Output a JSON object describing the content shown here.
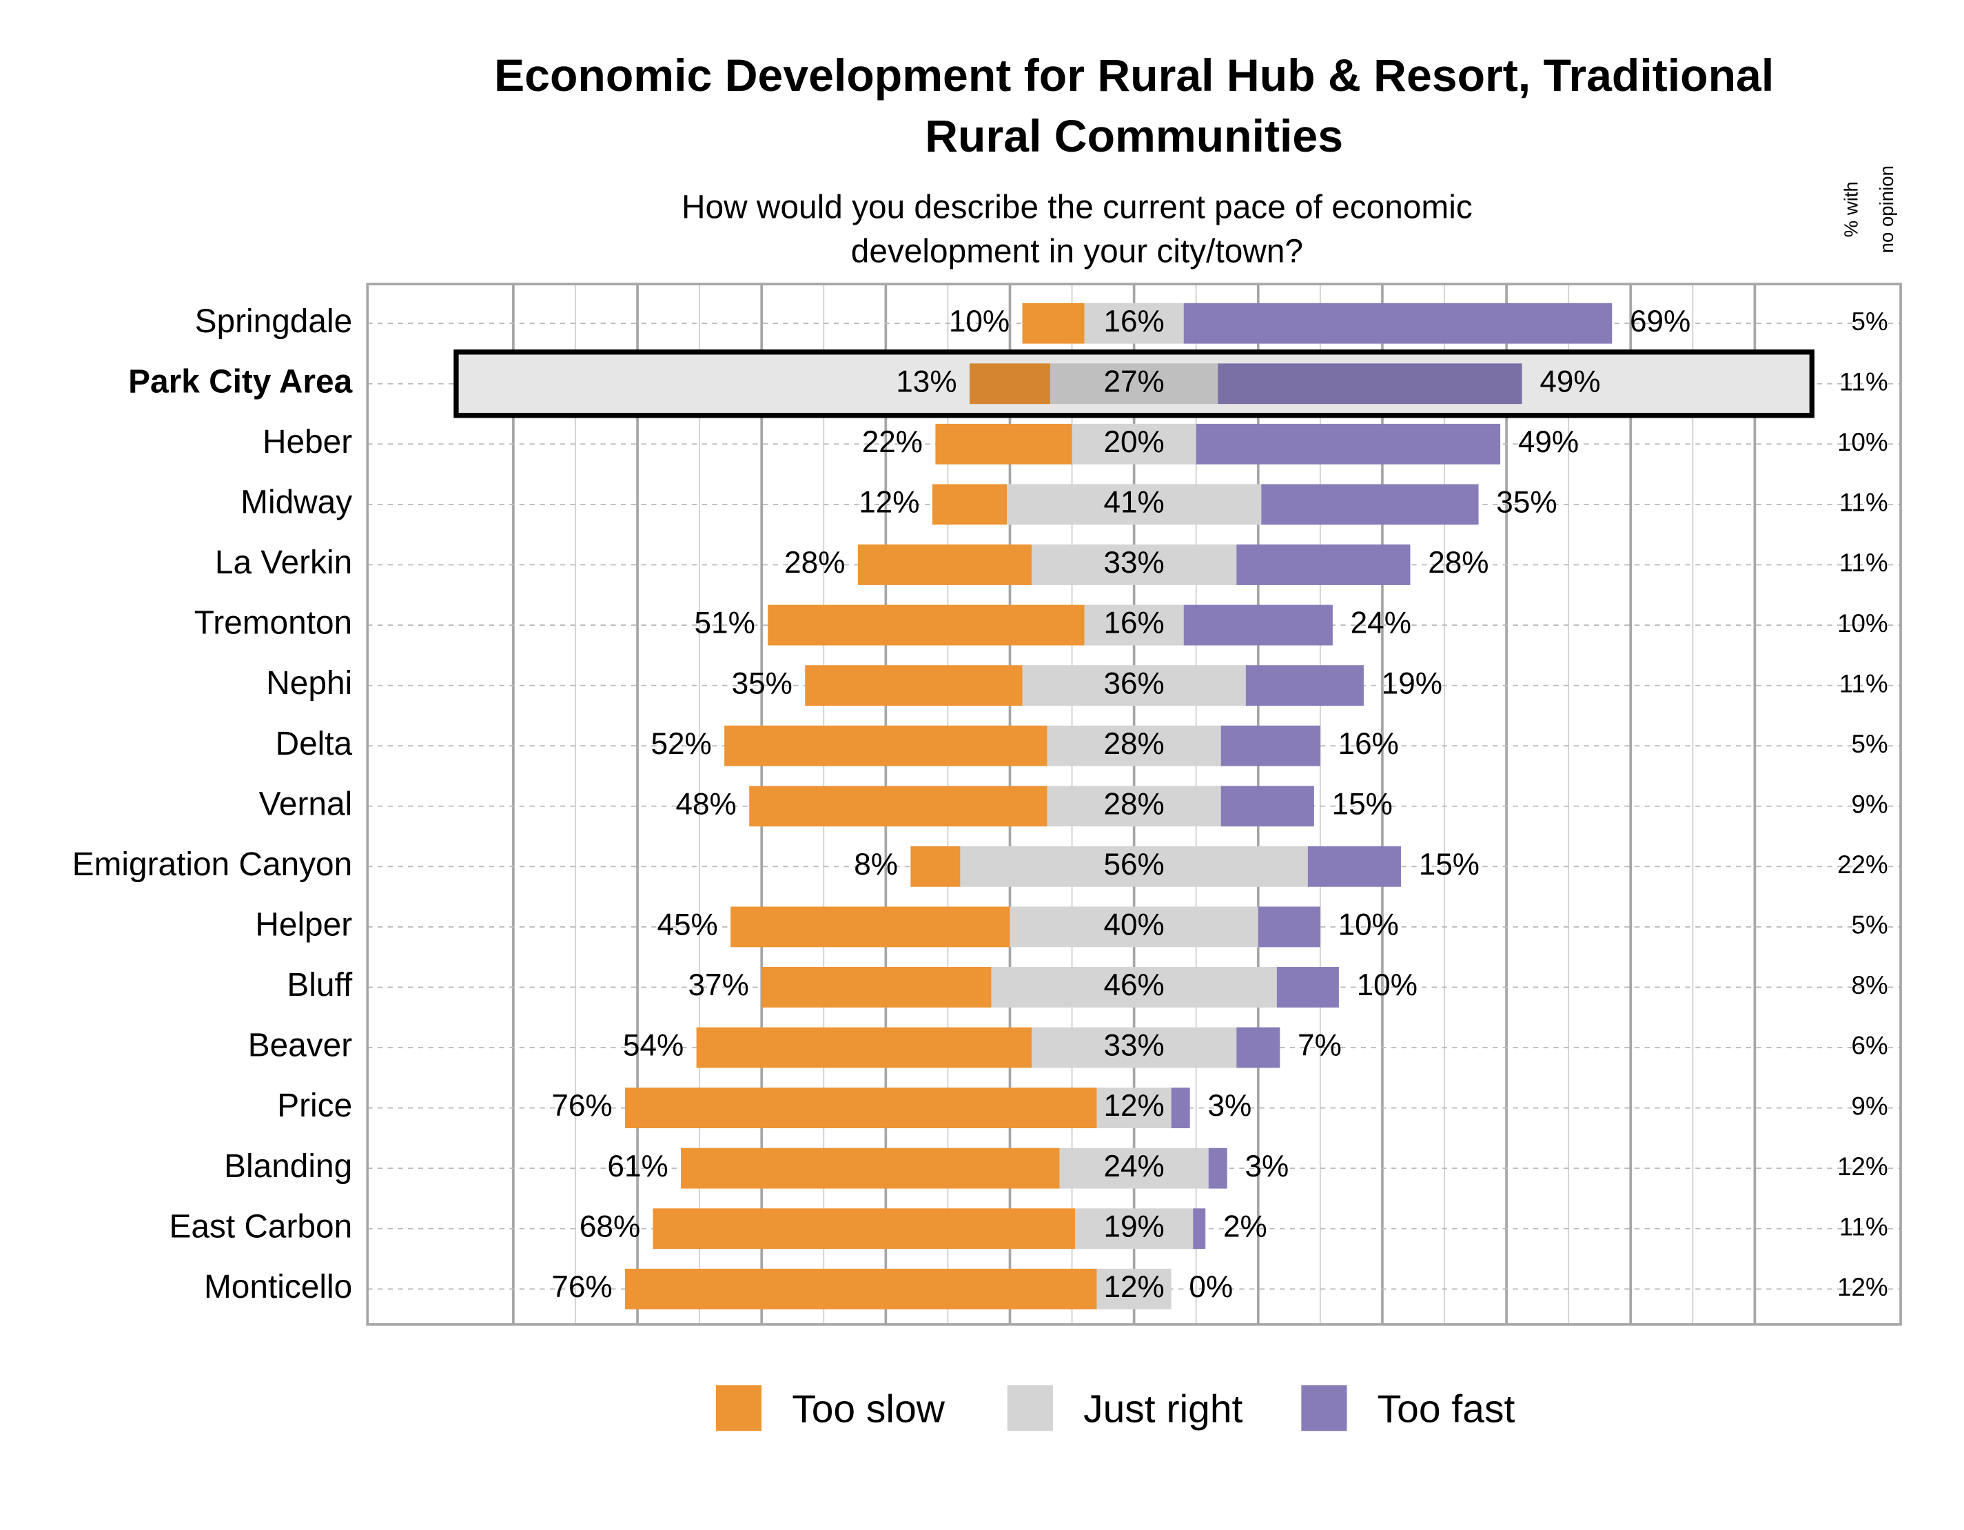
{
  "chart_data": {
    "type": "diverging_bar",
    "title": [
      "Economic Development for Rural Hub & Resort, Traditional",
      "Rural Communities"
    ],
    "subtitle": [
      "How would you describe the current pace of economic",
      "development in your city/town?"
    ],
    "categories": [
      "Springdale",
      "Park City Area",
      "Heber",
      "Midway",
      "La Verkin",
      "Tremonton",
      "Nephi",
      "Delta",
      "Vernal",
      "Emigration Canyon",
      "Helper",
      "Bluff",
      "Beaver",
      "Price",
      "Blanding",
      "East Carbon",
      "Monticello"
    ],
    "highlight": 1,
    "series": [
      {
        "name": "Too slow",
        "color": "#ED9434",
        "values": [
          10,
          13,
          22,
          12,
          28,
          51,
          35,
          52,
          48,
          8,
          45,
          37,
          54,
          76,
          61,
          68,
          76
        ],
        "value_labels": [
          "10%",
          "13%",
          "22%",
          "12%",
          "28%",
          "51%",
          "35%",
          "52%",
          "48%",
          "8%",
          "45%",
          "37%",
          "54%",
          "76%",
          "61%",
          "68%",
          "76%"
        ]
      },
      {
        "name": "Just right",
        "color": "#D4D4D4",
        "values": [
          16,
          27,
          20,
          41,
          33,
          16,
          36,
          28,
          28,
          56,
          40,
          46,
          33,
          12,
          24,
          19,
          12
        ],
        "value_labels": [
          "16%",
          "27%",
          "20%",
          "41%",
          "33%",
          "16%",
          "36%",
          "28%",
          "28%",
          "56%",
          "40%",
          "46%",
          "33%",
          "12%",
          "24%",
          "19%",
          "12%"
        ]
      },
      {
        "name": "Too fast",
        "color": "#887CB8",
        "values": [
          69,
          49,
          49,
          35,
          28,
          24,
          19,
          16,
          15,
          15,
          10,
          10,
          7,
          3,
          3,
          2,
          0
        ],
        "value_labels": [
          "69%",
          "49%",
          "49%",
          "35%",
          "28%",
          "24%",
          "19%",
          "16%",
          "15%",
          "15%",
          "10%",
          "10%",
          "7%",
          "3%",
          "3%",
          "2%",
          "0%"
        ]
      }
    ],
    "no_opinion": {
      "label": [
        "% with",
        "no opinion"
      ],
      "values": [
        5,
        11,
        10,
        11,
        11,
        10,
        11,
        5,
        9,
        22,
        5,
        8,
        6,
        9,
        12,
        11,
        12
      ],
      "value_labels": [
        "5%",
        "11%",
        "10%",
        "11%",
        "11%",
        "10%",
        "11%",
        "5%",
        "9%",
        "22%",
        "5%",
        "8%",
        "6%",
        "9%",
        "12%",
        "11%",
        "12%"
      ]
    },
    "xlim": [
      -123.5,
      123.5
    ],
    "xticks": [
      -100,
      -90,
      -80,
      -70,
      -60,
      -50,
      -40,
      -30,
      -20,
      -10,
      0,
      10,
      20,
      30,
      40,
      50,
      60,
      70,
      80,
      90,
      100
    ],
    "grid": true
  }
}
